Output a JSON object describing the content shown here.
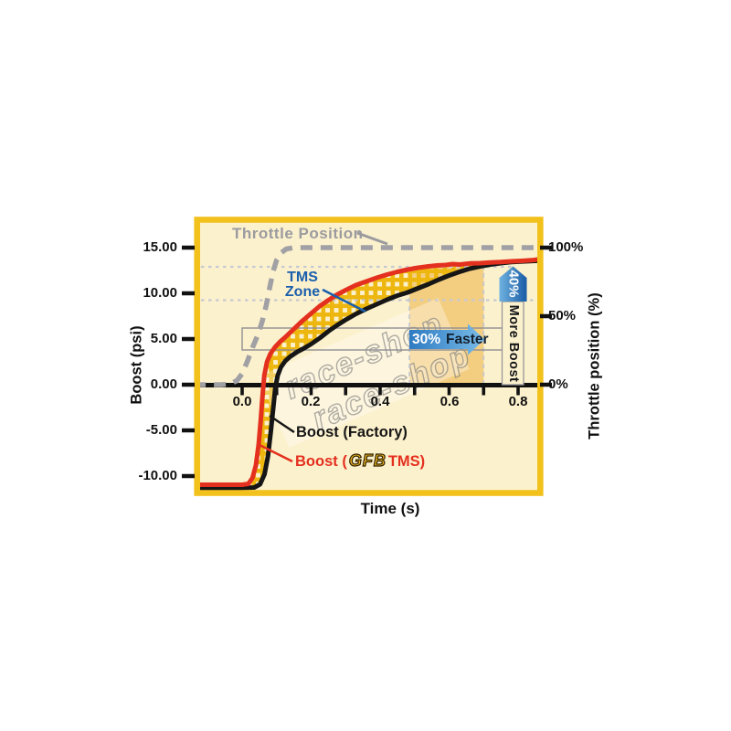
{
  "watermark": {
    "text": "race-shop"
  },
  "chart_data": {
    "type": "line",
    "title": "",
    "xlabel": "Time (s)",
    "ylabel_left": "Boost (psi)",
    "ylabel_right": "Throttle position (%)",
    "xlim": [
      -0.14,
      0.87
    ],
    "ylim_left": [
      -11.7,
      18.2
    ],
    "ylim_right_ticks": [
      100,
      50,
      0
    ],
    "grid": "off",
    "x_tick_labels": [
      "0.0",
      "0.2",
      "0.4",
      "0.6",
      "0.8"
    ],
    "x_tick_values": [
      0.0,
      0.2,
      0.4,
      0.6,
      0.8
    ],
    "x_minor_tick_values": [
      0.0,
      0.1,
      0.2,
      0.3,
      0.4,
      0.5,
      0.6,
      0.7,
      0.8
    ],
    "y_tick_labels_left": [
      "15.00",
      "10.00",
      "5.00",
      "0.00",
      "-5.00",
      "-10.00"
    ],
    "y_tick_values_left": [
      15,
      10,
      5,
      0,
      -5,
      -10
    ],
    "y_tick_labels_right": [
      "100%",
      "50%",
      "0%"
    ],
    "y_tick_values_right": [
      100,
      50,
      0
    ],
    "series": [
      {
        "name": "Throttle Position",
        "unit": "%",
        "style": "dashed",
        "color": "#A0A0A5",
        "points": [
          [
            -0.14,
            0
          ],
          [
            -0.1,
            0
          ],
          [
            -0.06,
            0
          ],
          [
            -0.035,
            0.5
          ],
          [
            -0.015,
            3
          ],
          [
            0.0,
            8
          ],
          [
            0.015,
            17
          ],
          [
            0.03,
            27
          ],
          [
            0.045,
            36
          ],
          [
            0.058,
            46
          ],
          [
            0.07,
            58
          ],
          [
            0.08,
            71
          ],
          [
            0.09,
            83
          ],
          [
            0.1,
            91
          ],
          [
            0.112,
            96
          ],
          [
            0.128,
            99
          ],
          [
            0.15,
            100
          ],
          [
            0.25,
            100
          ],
          [
            0.4,
            100
          ],
          [
            0.55,
            100
          ],
          [
            0.7,
            100
          ],
          [
            0.866,
            100
          ]
        ]
      },
      {
        "name": "Boost (Factory)",
        "unit": "psi",
        "style": "solid",
        "color": "#161616",
        "points": [
          [
            -0.14,
            -11.3
          ],
          [
            0.0,
            -11.3
          ],
          [
            0.035,
            -11.25
          ],
          [
            0.052,
            -10.9
          ],
          [
            0.065,
            -9.8
          ],
          [
            0.075,
            -7.8
          ],
          [
            0.083,
            -5.2
          ],
          [
            0.09,
            -2.6
          ],
          [
            0.096,
            -0.4
          ],
          [
            0.103,
            1.0
          ],
          [
            0.112,
            1.9
          ],
          [
            0.125,
            2.6
          ],
          [
            0.14,
            3.1
          ],
          [
            0.16,
            3.6
          ],
          [
            0.18,
            4.0
          ],
          [
            0.2,
            4.45
          ],
          [
            0.225,
            5.1
          ],
          [
            0.25,
            5.85
          ],
          [
            0.275,
            6.5
          ],
          [
            0.3,
            7.1
          ],
          [
            0.33,
            7.75
          ],
          [
            0.36,
            8.3
          ],
          [
            0.39,
            8.8
          ],
          [
            0.42,
            9.3
          ],
          [
            0.45,
            9.75
          ],
          [
            0.48,
            10.1
          ],
          [
            0.51,
            10.55
          ],
          [
            0.54,
            11.0
          ],
          [
            0.57,
            11.5
          ],
          [
            0.6,
            11.95
          ],
          [
            0.63,
            12.35
          ],
          [
            0.66,
            12.7
          ],
          [
            0.69,
            12.95
          ],
          [
            0.72,
            13.15
          ],
          [
            0.75,
            13.3
          ],
          [
            0.78,
            13.42
          ],
          [
            0.82,
            13.5
          ],
          [
            0.866,
            13.58
          ]
        ]
      },
      {
        "name": "Boost (GFB TMS)",
        "unit": "psi",
        "style": "solid",
        "color": "#E4301F",
        "points": [
          [
            -0.14,
            -10.95
          ],
          [
            -0.05,
            -10.95
          ],
          [
            0.0,
            -10.95
          ],
          [
            0.018,
            -10.85
          ],
          [
            0.03,
            -10.2
          ],
          [
            0.04,
            -8.8
          ],
          [
            0.048,
            -6.5
          ],
          [
            0.054,
            -3.8
          ],
          [
            0.059,
            -1.2
          ],
          [
            0.064,
            1.0
          ],
          [
            0.072,
            2.5
          ],
          [
            0.082,
            3.4
          ],
          [
            0.095,
            4.1
          ],
          [
            0.11,
            4.7
          ],
          [
            0.125,
            5.2
          ],
          [
            0.15,
            6.1
          ],
          [
            0.175,
            7.0
          ],
          [
            0.2,
            7.8
          ],
          [
            0.225,
            8.6
          ],
          [
            0.25,
            9.25
          ],
          [
            0.275,
            9.85
          ],
          [
            0.3,
            10.35
          ],
          [
            0.33,
            10.9
          ],
          [
            0.36,
            11.3
          ],
          [
            0.39,
            11.7
          ],
          [
            0.42,
            12.05
          ],
          [
            0.45,
            12.35
          ],
          [
            0.48,
            12.6
          ],
          [
            0.51,
            12.8
          ],
          [
            0.54,
            12.95
          ],
          [
            0.565,
            13.05
          ],
          [
            0.59,
            13.1
          ],
          [
            0.61,
            13.2
          ],
          [
            0.63,
            13.15
          ],
          [
            0.66,
            13.27
          ],
          [
            0.69,
            13.3
          ],
          [
            0.72,
            13.38
          ],
          [
            0.75,
            13.42
          ],
          [
            0.78,
            13.5
          ],
          [
            0.81,
            13.55
          ],
          [
            0.84,
            13.62
          ],
          [
            0.866,
            13.75
          ]
        ]
      }
    ],
    "tms_zone": {
      "t_start": 0.018,
      "t_end": 0.7
    },
    "highlight_band": {
      "t_start": 0.485,
      "t_end": 0.7
    },
    "dotted_levels_psi": [
      12.9,
      9.25
    ],
    "annotations": {
      "throttle_label": "Throttle Position",
      "tms_zone_line1": "TMS",
      "tms_zone_line2": "Zone",
      "faster_pct": "30%",
      "faster_word": "Faster",
      "more_pct": "40%",
      "more_label": "More Boost",
      "legend_factory": "Boost (Factory)",
      "legend_tms_prefix": "Boost (",
      "legend_tms_logo": "GFB",
      "legend_tms_suffix": "TMS)"
    },
    "colors": {
      "frame": "#F3C11C",
      "background": "#FCF1CD",
      "band": "rgba(230,158,22,0.42)",
      "hatch": "#EDB70F",
      "factory": "#161616",
      "tms_red": "#E4301F",
      "throttle_gray": "#A0A0A5",
      "blue_accent": "#1A5FAD",
      "dotted_gray": "#C7C9D3",
      "logo_gold": "#EDB421"
    }
  }
}
